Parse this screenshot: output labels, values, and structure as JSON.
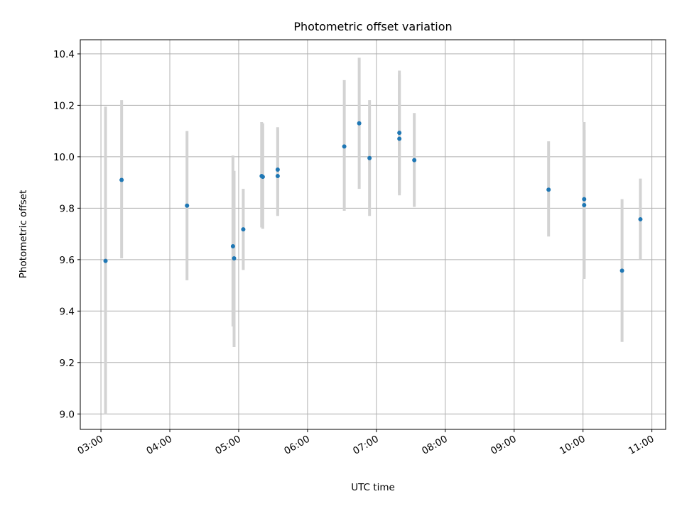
{
  "chart_data": {
    "type": "scatter",
    "title": "Photometric offset variation",
    "xlabel": "UTC time",
    "ylabel": "Photometric offset",
    "xlim": [
      "02:42",
      "11:12"
    ],
    "ylim": [
      8.94,
      10.455
    ],
    "grid": true,
    "x_ticks": [
      "03:00",
      "04:00",
      "05:00",
      "06:00",
      "07:00",
      "08:00",
      "09:00",
      "10:00",
      "11:00"
    ],
    "y_ticks": [
      "9.0",
      "9.2",
      "9.4",
      "9.6",
      "9.8",
      "10.0",
      "10.2",
      "10.4"
    ],
    "colors": {
      "point": "#1f77b4",
      "errorbar": "#d3d3d3",
      "grid": "#b0b0b0"
    },
    "points": [
      {
        "time": "03:04",
        "y": 9.595,
        "ylow": 9.0,
        "yhigh": 10.195
      },
      {
        "time": "03:18",
        "y": 9.91,
        "ylow": 9.605,
        "yhigh": 10.22
      },
      {
        "time": "04:15",
        "y": 9.81,
        "ylow": 9.52,
        "yhigh": 10.1
      },
      {
        "time": "04:55",
        "y": 9.652,
        "ylow": 9.34,
        "yhigh": 10.005
      },
      {
        "time": "04:56",
        "y": 9.605,
        "ylow": 9.26,
        "yhigh": 9.945
      },
      {
        "time": "05:04",
        "y": 9.718,
        "ylow": 9.56,
        "yhigh": 9.875
      },
      {
        "time": "05:20",
        "y": 9.925,
        "ylow": 9.725,
        "yhigh": 10.135
      },
      {
        "time": "05:21",
        "y": 9.922,
        "ylow": 9.72,
        "yhigh": 10.13
      },
      {
        "time": "05:34",
        "y": 9.95,
        "ylow": 9.785,
        "yhigh": 10.115
      },
      {
        "time": "05:34",
        "y": 9.925,
        "ylow": 9.77,
        "yhigh": 10.1
      },
      {
        "time": "06:32",
        "y": 10.04,
        "ylow": 9.79,
        "yhigh": 10.298
      },
      {
        "time": "06:45",
        "y": 10.13,
        "ylow": 9.875,
        "yhigh": 10.385
      },
      {
        "time": "06:54",
        "y": 9.995,
        "ylow": 9.77,
        "yhigh": 10.22
      },
      {
        "time": "07:20",
        "y": 10.093,
        "ylow": 9.86,
        "yhigh": 10.335
      },
      {
        "time": "07:20",
        "y": 10.07,
        "ylow": 9.85,
        "yhigh": 10.32
      },
      {
        "time": "07:33",
        "y": 9.987,
        "ylow": 9.805,
        "yhigh": 10.17
      },
      {
        "time": "09:30",
        "y": 9.872,
        "ylow": 9.69,
        "yhigh": 10.06
      },
      {
        "time": "10:01",
        "y": 9.835,
        "ylow": 9.53,
        "yhigh": 10.135
      },
      {
        "time": "10:01",
        "y": 9.812,
        "ylow": 9.525,
        "yhigh": 10.105
      },
      {
        "time": "10:34",
        "y": 9.557,
        "ylow": 9.28,
        "yhigh": 9.835
      },
      {
        "time": "10:50",
        "y": 9.757,
        "ylow": 9.6,
        "yhigh": 9.915
      }
    ]
  }
}
